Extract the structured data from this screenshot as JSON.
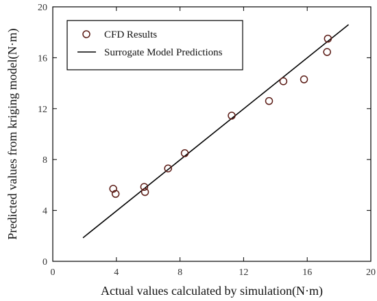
{
  "chart_data": {
    "type": "scatter",
    "title": "",
    "xlabel": "Actual values calculated by simulation(N·m)",
    "ylabel": "Predicted values from kriging model(N·m)",
    "xlim": [
      0,
      20
    ],
    "ylim": [
      0,
      20
    ],
    "xticks": [
      0,
      4,
      8,
      12,
      16,
      20
    ],
    "yticks": [
      0,
      4,
      8,
      12,
      16,
      20
    ],
    "grid": false,
    "legend_position": "top-left",
    "series": [
      {
        "name": "CFD Results",
        "kind": "scatter",
        "marker": "open-circle",
        "color": "#5a1a14",
        "points": [
          [
            3.8,
            5.7
          ],
          [
            3.95,
            5.3
          ],
          [
            5.75,
            5.85
          ],
          [
            5.8,
            5.45
          ],
          [
            7.25,
            7.3
          ],
          [
            8.3,
            8.5
          ],
          [
            11.25,
            11.45
          ],
          [
            13.6,
            12.6
          ],
          [
            14.5,
            14.15
          ],
          [
            15.8,
            14.3
          ],
          [
            17.25,
            16.45
          ],
          [
            17.3,
            17.5
          ]
        ]
      },
      {
        "name": "Surrogate Model Predictions",
        "kind": "line",
        "color": "#000000",
        "points": [
          [
            1.9,
            1.85
          ],
          [
            18.6,
            18.6
          ]
        ]
      }
    ]
  }
}
